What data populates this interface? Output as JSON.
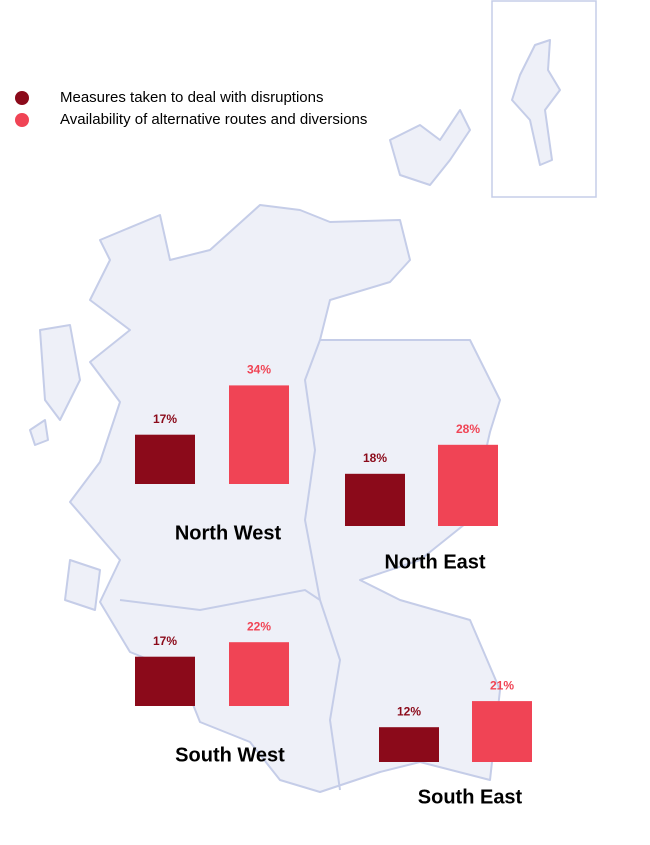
{
  "legend": [
    {
      "name": "Measures taken to deal with disruptions",
      "color": "#8b0a1a"
    },
    {
      "name": "Availability of alternative routes and diversions",
      "color": "#f04455"
    }
  ],
  "regions": [
    {
      "name": "North West",
      "values": [
        17,
        34
      ],
      "value_labels": [
        "17%",
        "34%"
      ]
    },
    {
      "name": "North East",
      "values": [
        18,
        28
      ],
      "value_labels": [
        "18%",
        "28%"
      ]
    },
    {
      "name": "South West",
      "values": [
        17,
        22
      ],
      "value_labels": [
        "17%",
        "22%"
      ]
    },
    {
      "name": "South East",
      "values": [
        12,
        21
      ],
      "value_labels": [
        "12%",
        "21%"
      ]
    }
  ]
}
